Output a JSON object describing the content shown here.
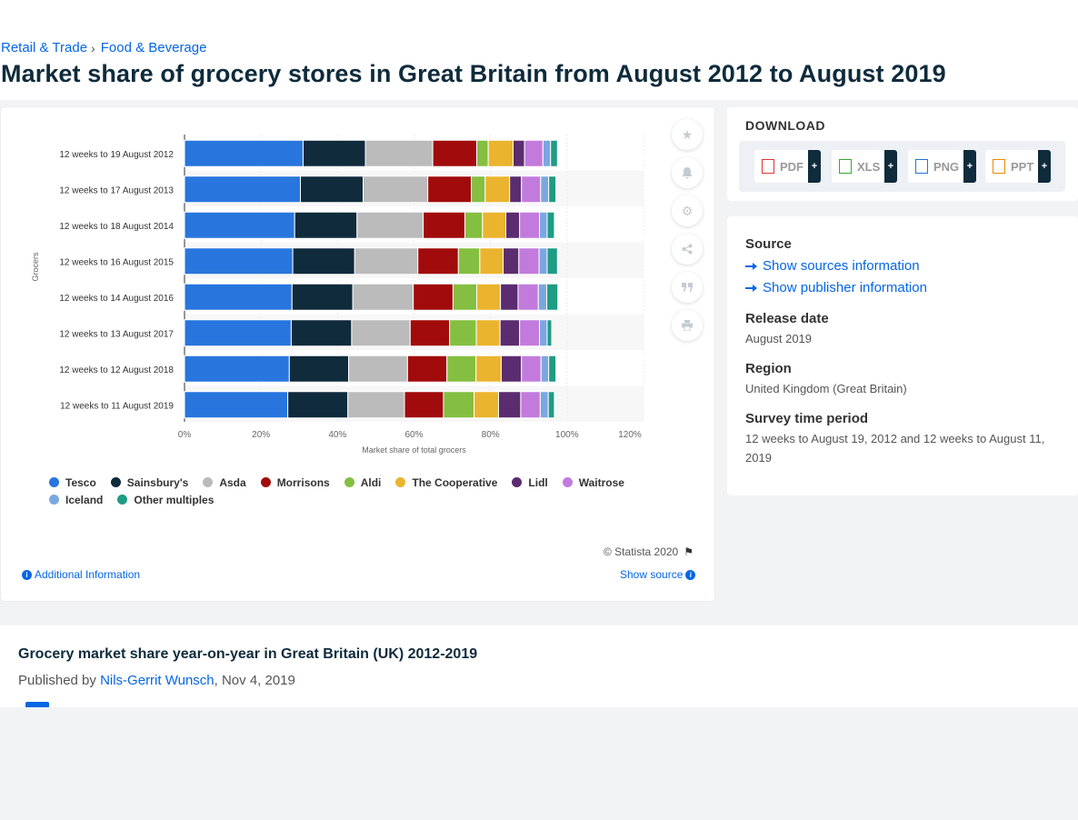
{
  "breadcrumb": [
    "Retail & Trade",
    "Food & Beverage"
  ],
  "page_title": "Market share of grocery stores in Great Britain from August 2012 to August 2019",
  "chart_toolbar": {
    "icons": [
      "star-icon",
      "bell-icon",
      "gear-icon",
      "share-icon",
      "quote-icon",
      "print-icon"
    ]
  },
  "chart_footer": {
    "copyright": "© Statista 2020",
    "additional_info": "Additional Information",
    "show_source": "Show source"
  },
  "download": {
    "title": "DOWNLOAD",
    "buttons": [
      "PDF",
      "XLS",
      "PNG",
      "PPT"
    ],
    "plus": "+"
  },
  "info": {
    "source_label": "Source",
    "show_sources": "Show sources information",
    "show_publisher": "Show publisher information",
    "release_label": "Release date",
    "release_value": "August 2019",
    "region_label": "Region",
    "region_value": "United Kingdom (Great Britain)",
    "survey_label": "Survey time period",
    "survey_value": "12 weeks to August 19, 2012 and 12 weeks to August 11, 2019"
  },
  "related": {
    "title": "Grocery market share year-on-year in Great Britain (UK) 2012-2019",
    "published_prefix": "Published by ",
    "author": "Nils-Gerrit Wunsch",
    "date": ", Nov 4, 2019"
  },
  "chart_data": {
    "type": "bar",
    "orientation": "horizontal",
    "stacked": true,
    "xlabel": "Market share of total grocers",
    "ylabel": "Grocers",
    "xlim": [
      0,
      120
    ],
    "x_ticks": [
      "0%",
      "20%",
      "40%",
      "60%",
      "80%",
      "100%",
      "120%"
    ],
    "x_tick_values": [
      0,
      20,
      40,
      60,
      80,
      100,
      120
    ],
    "categories": [
      "12 weeks to 19 August 2012",
      "12 weeks to 17 August 2013",
      "12 weeks to 18 August 2014",
      "12 weeks to 16 August 2015",
      "12 weeks to 14 August 2016",
      "12 weeks to 13 August 2017",
      "12 weeks to 12 August 2018",
      "12 weeks to 11 August 2019"
    ],
    "series": [
      {
        "name": "Tesco",
        "color": "#2876dd",
        "values": [
          31.0,
          30.3,
          28.8,
          28.3,
          28.1,
          27.9,
          27.4,
          27.0
        ]
      },
      {
        "name": "Sainsbury's",
        "color": "#0f2b3c",
        "values": [
          16.3,
          16.4,
          16.3,
          16.2,
          15.9,
          15.8,
          15.5,
          15.7
        ]
      },
      {
        "name": "Asda",
        "color": "#bbbbbb",
        "values": [
          17.6,
          16.9,
          17.3,
          16.5,
          15.8,
          15.3,
          15.4,
          14.8
        ]
      },
      {
        "name": "Morrisons",
        "color": "#a10b0b",
        "values": [
          11.5,
          11.4,
          10.9,
          10.6,
          10.4,
          10.3,
          10.3,
          10.2
        ]
      },
      {
        "name": "Aldi",
        "color": "#84bf41",
        "values": [
          3.0,
          3.6,
          4.6,
          5.6,
          6.2,
          7.0,
          7.6,
          8.0
        ]
      },
      {
        "name": "The Cooperative",
        "color": "#ebb42e",
        "values": [
          6.5,
          6.4,
          6.1,
          6.1,
          6.2,
          6.2,
          6.6,
          6.4
        ]
      },
      {
        "name": "Lidl",
        "color": "#5b2c6f",
        "values": [
          3.0,
          3.1,
          3.6,
          4.1,
          4.6,
          5.1,
          5.3,
          5.8
        ]
      },
      {
        "name": "Waitrose",
        "color": "#c27bdc",
        "values": [
          4.8,
          5.0,
          5.2,
          5.3,
          5.3,
          5.2,
          5.1,
          5.1
        ]
      },
      {
        "name": "Iceland",
        "color": "#7ba7e1",
        "values": [
          2.0,
          2.1,
          2.0,
          2.1,
          2.2,
          2.0,
          2.0,
          2.1
        ]
      },
      {
        "name": "Other multiples",
        "color": "#1f9c84",
        "values": [
          1.8,
          1.9,
          1.9,
          2.7,
          2.9,
          1.2,
          1.9,
          1.6
        ]
      }
    ],
    "grid": true,
    "legend_position": "bottom"
  }
}
